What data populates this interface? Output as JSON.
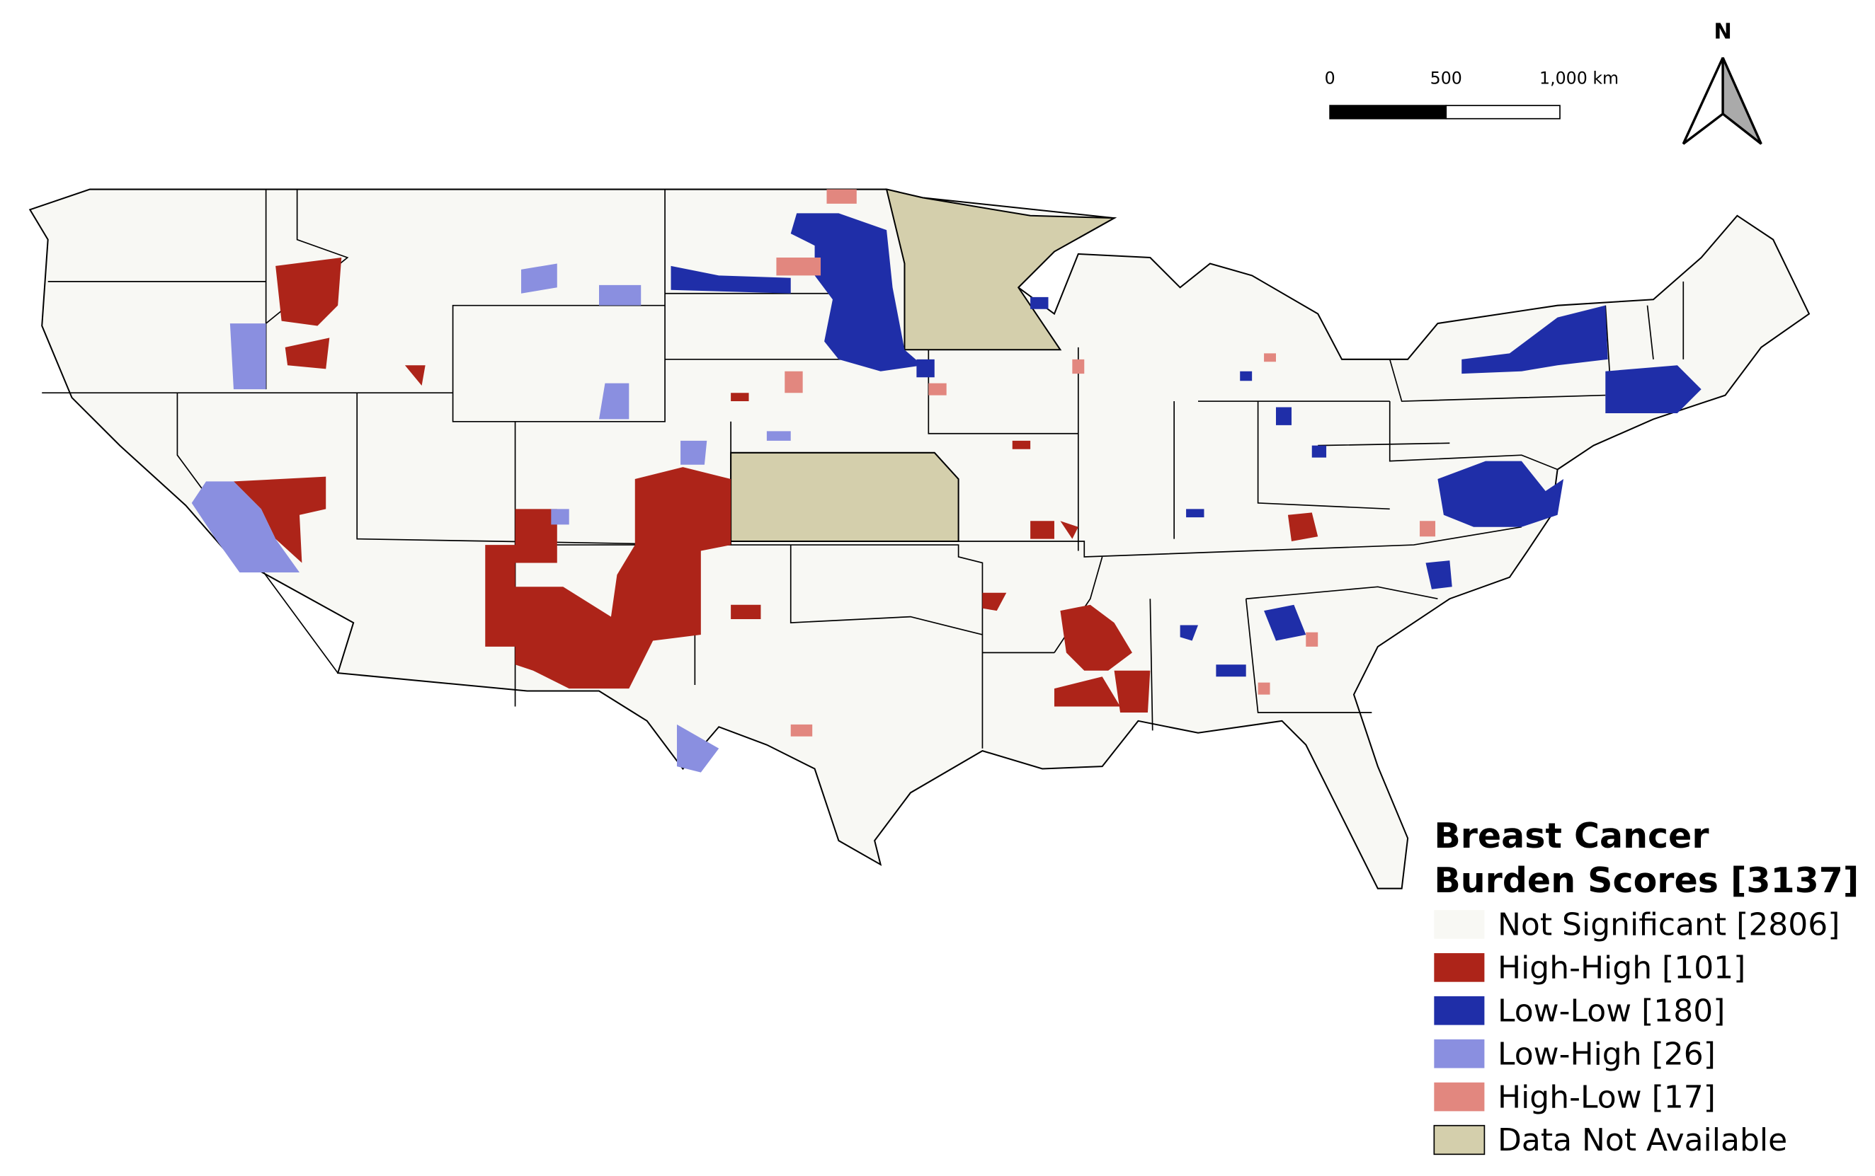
{
  "scale_bar": {
    "labels": [
      "0",
      "500",
      "1,000 km"
    ]
  },
  "north_arrow": {
    "label": "N"
  },
  "legend": {
    "title_lines": [
      "Breast Cancer",
      "Burden Scores [3137]"
    ],
    "items": [
      {
        "label": "Not Significant [2806]",
        "color": "#f8f8f4"
      },
      {
        "label": "High-High [101]",
        "color": "#ad2419"
      },
      {
        "label": "Low-Low [180]",
        "color": "#1f2ea8"
      },
      {
        "label": "Low-High [26]",
        "color": "#8a8fe0"
      },
      {
        "label": "High-Low [17]",
        "color": "#e2877f"
      },
      {
        "label": "Data Not Available",
        "color": "#d4cfac"
      }
    ]
  }
}
